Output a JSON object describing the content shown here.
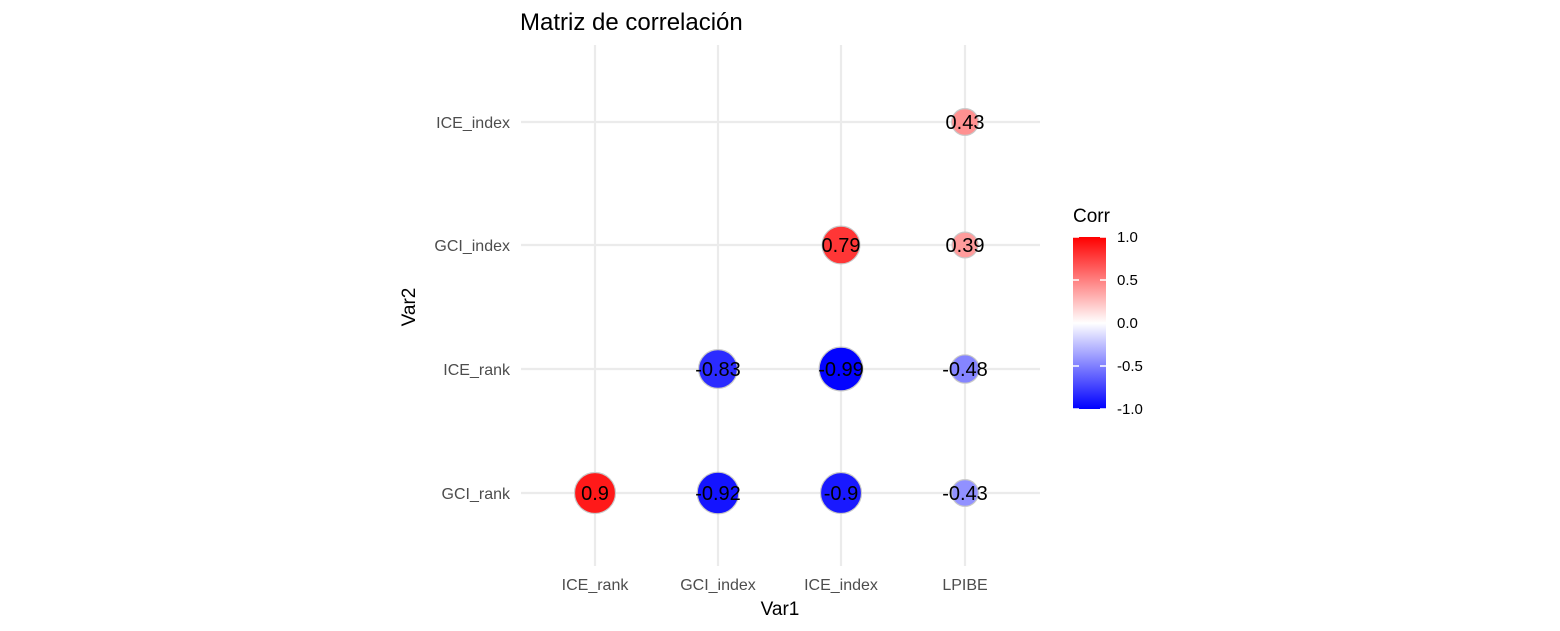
{
  "chart_data": {
    "type": "scatter",
    "subtype": "correlation-matrix-circles",
    "title": "Matriz de correlación",
    "xlabel": "Var1",
    "ylabel": "Var2",
    "x_categories": [
      "ICE_rank",
      "GCI_index",
      "ICE_index",
      "LPIBE"
    ],
    "y_categories": [
      "GCI_rank",
      "ICE_rank",
      "GCI_index",
      "ICE_index"
    ],
    "cells": [
      {
        "x": "ICE_rank",
        "y": "GCI_rank",
        "value": 0.9,
        "label": "0.9"
      },
      {
        "x": "GCI_index",
        "y": "GCI_rank",
        "value": -0.92,
        "label": "-0.92"
      },
      {
        "x": "ICE_index",
        "y": "GCI_rank",
        "value": -0.9,
        "label": "-0.9"
      },
      {
        "x": "LPIBE",
        "y": "GCI_rank",
        "value": -0.43,
        "label": "-0.43"
      },
      {
        "x": "GCI_index",
        "y": "ICE_rank",
        "value": -0.83,
        "label": "-0.83"
      },
      {
        "x": "ICE_index",
        "y": "ICE_rank",
        "value": -0.99,
        "label": "-0.99"
      },
      {
        "x": "LPIBE",
        "y": "ICE_rank",
        "value": -0.48,
        "label": "-0.48"
      },
      {
        "x": "ICE_index",
        "y": "GCI_index",
        "value": 0.79,
        "label": "0.79"
      },
      {
        "x": "LPIBE",
        "y": "GCI_index",
        "value": 0.39,
        "label": "0.39"
      },
      {
        "x": "LPIBE",
        "y": "ICE_index",
        "value": 0.43,
        "label": "0.43"
      }
    ],
    "size_encodes": "absolute correlation",
    "color_scale": {
      "low": "#0000ff",
      "mid": "#ffffff",
      "high": "#ff0000",
      "limits": [
        -1,
        1
      ]
    },
    "legend": {
      "title": "Corr",
      "ticks": [
        "1.0",
        "0.5",
        "0.0",
        "-0.5",
        "-1.0"
      ],
      "tick_values": [
        1,
        0.5,
        0,
        -0.5,
        -1
      ],
      "position": "right"
    },
    "grid": true
  }
}
